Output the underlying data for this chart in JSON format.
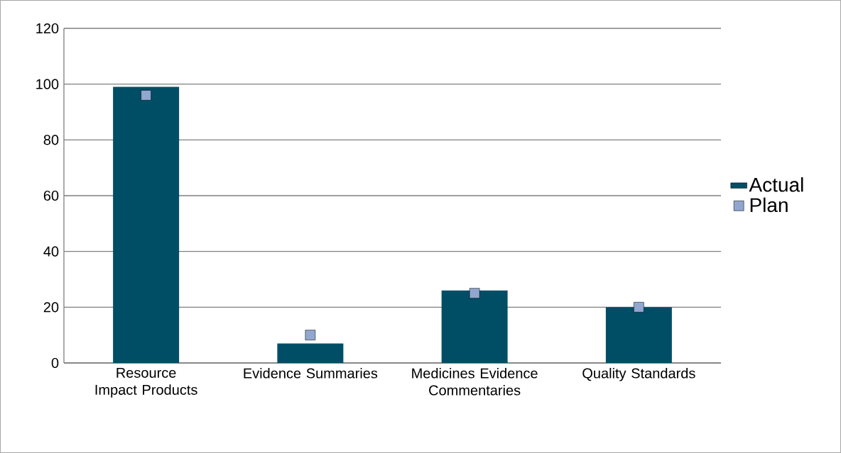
{
  "chart_data": {
    "type": "bar",
    "categories": [
      "Resource Impact Products",
      "Evidence Summaries",
      "Medicines Evidence Commentaries",
      "Quality Standards"
    ],
    "series": [
      {
        "name": "Actual",
        "color": "#004e66",
        "values": [
          99,
          7,
          26,
          20
        ]
      },
      {
        "name": "Plan",
        "type": "scatter",
        "marker": "square",
        "color": "#91a7cf",
        "values": [
          96,
          10,
          25,
          20
        ]
      }
    ],
    "ylim": [
      0,
      120
    ],
    "yticks": [
      0,
      20,
      40,
      60,
      80,
      100,
      120
    ],
    "grid": "y",
    "legend": "right"
  }
}
